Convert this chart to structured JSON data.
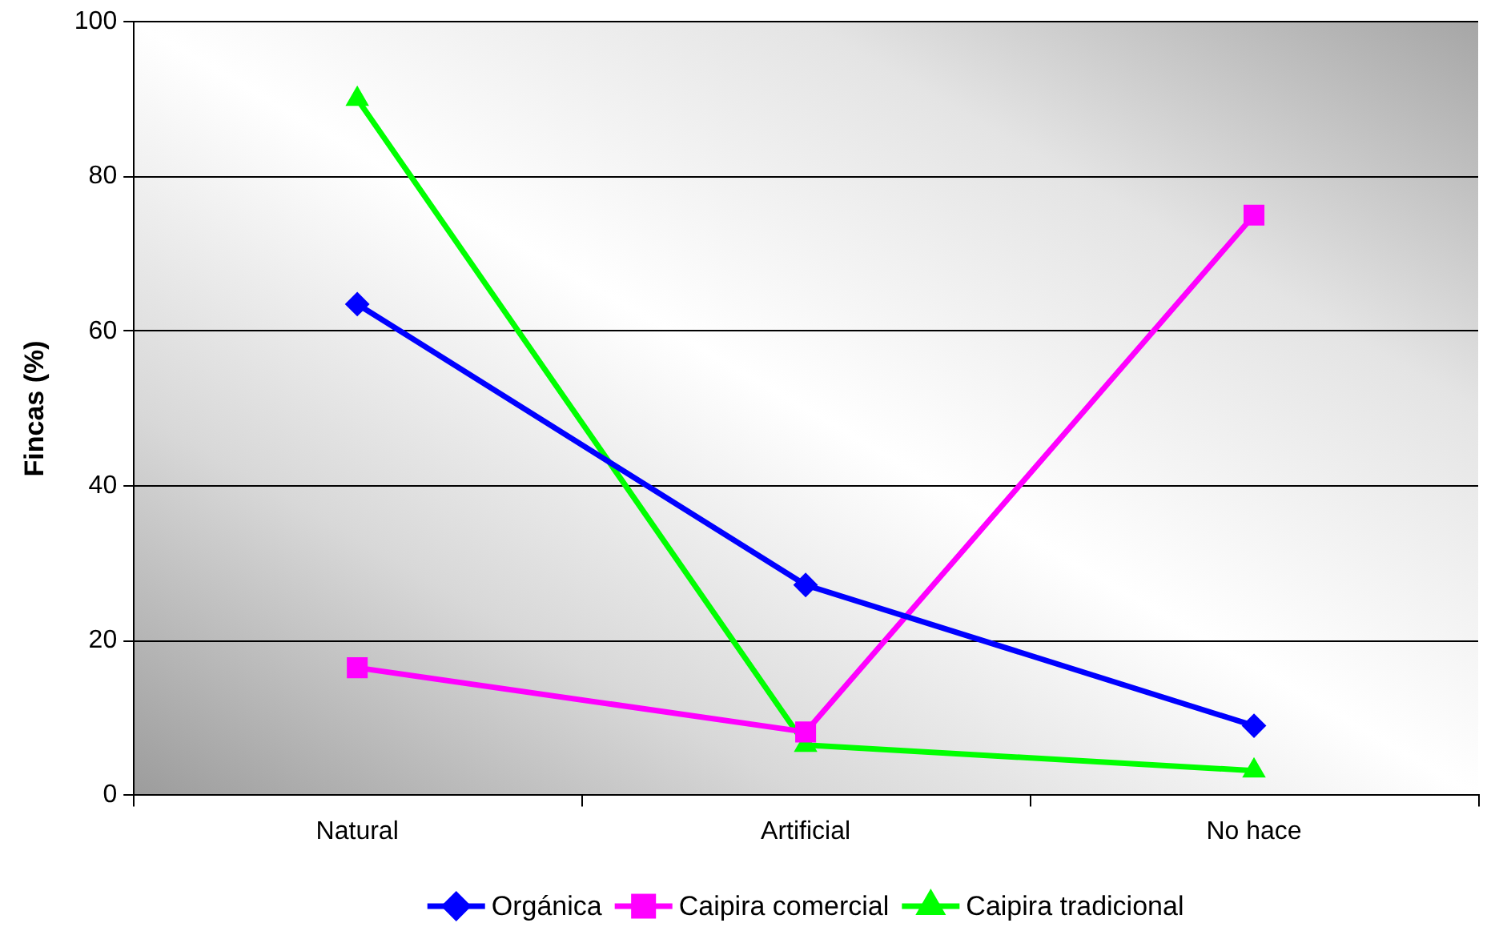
{
  "chart_data": {
    "type": "line",
    "ylabel": "Fincas (%)",
    "categories": [
      "Natural",
      "Artificial",
      "No hace"
    ],
    "series": [
      {
        "name": "Orgánica",
        "color": "#0000ff",
        "marker": "diamond",
        "values": [
          63.5,
          27.2,
          9
        ]
      },
      {
        "name": "Caipira comercial",
        "color": "#ff00ff",
        "marker": "square",
        "values": [
          16.5,
          8.2,
          75
        ]
      },
      {
        "name": "Caipira tradicional",
        "color": "#00ff00",
        "marker": "triangle",
        "values": [
          90,
          6.5,
          3.2
        ]
      }
    ],
    "ylim": [
      0,
      100
    ],
    "yticks": [
      0,
      20,
      40,
      60,
      80,
      100
    ],
    "grid": "y",
    "legend": "bottom",
    "line_style": "solid"
  }
}
